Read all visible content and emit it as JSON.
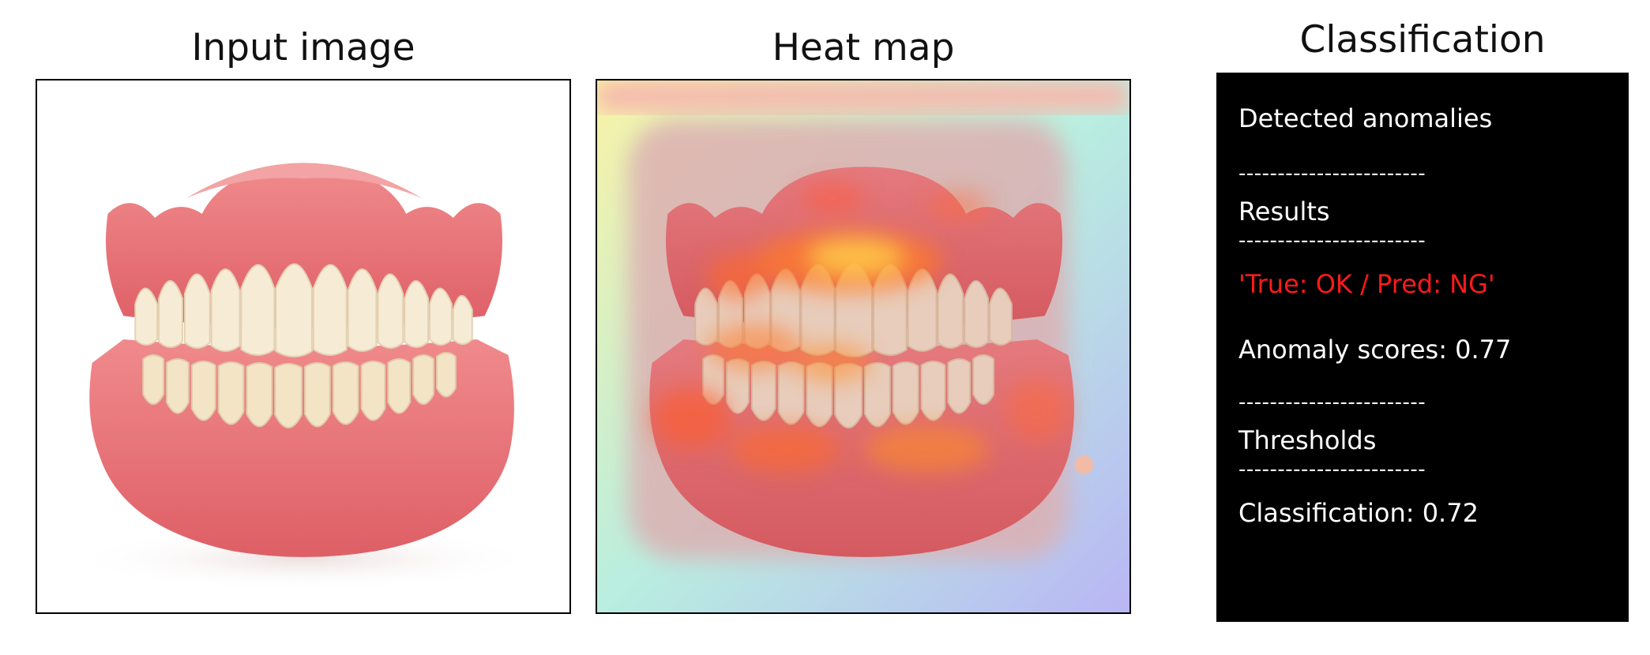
{
  "panels": {
    "input": {
      "title": "Input image"
    },
    "heatmap": {
      "title": "Heat map"
    },
    "classification": {
      "title": "Classification",
      "detected": "Detected anomalies",
      "separator": "------------------------",
      "results_label": "Results",
      "prediction": "'True: OK / Pred: NG'",
      "anomaly_scores": "Anomaly scores: 0.77",
      "thresholds_label": "Thresholds",
      "classification_threshold": "Classification: 0.72"
    }
  },
  "colors": {
    "panel_bg": "#000000",
    "panel_text": "#ffffff",
    "prediction_text": "#ff1a1a",
    "gum": "#e9767a",
    "tooth": "#f6ecd6"
  }
}
